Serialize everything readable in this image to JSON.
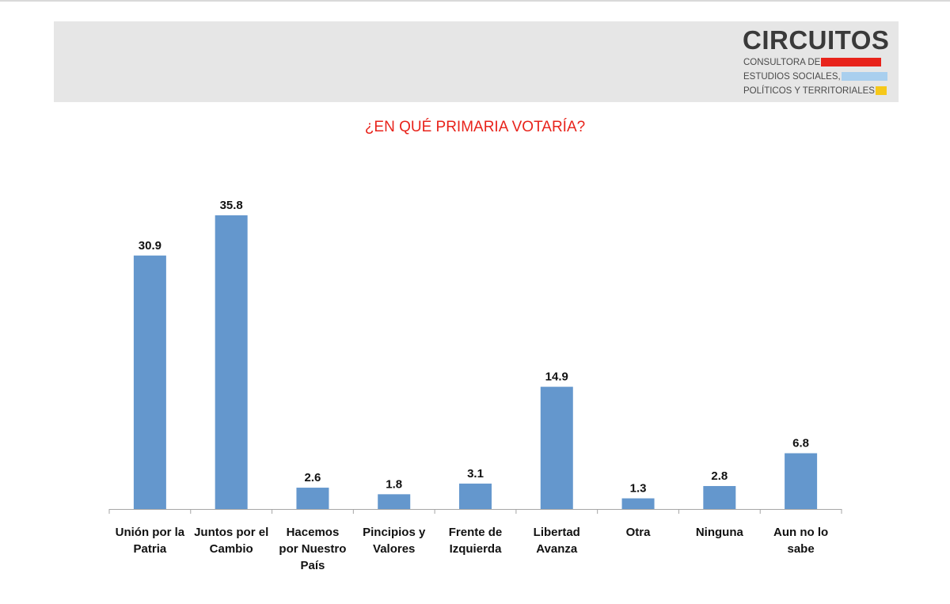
{
  "logo": {
    "name": "CIRCUITOS",
    "line1": "CONSULTORA DE",
    "line2": "ESTUDIOS SOCIALES,",
    "line3": "POLÍTICOS Y TERRITORIALES",
    "stripe_colors": [
      "#e8231b",
      "#a9cfee",
      "#f6c81a"
    ]
  },
  "colors": {
    "bar": "#6497cd",
    "title": "#e8231b",
    "axis": "#a6a6a6"
  },
  "chart_data": {
    "type": "bar",
    "title": "¿EN QUÉ PRIMARIA VOTARÍA?",
    "categories": [
      [
        "Unión por la",
        "Patria"
      ],
      [
        "Juntos por el",
        "Cambio"
      ],
      [
        "Hacemos",
        "por Nuestro",
        "País"
      ],
      [
        "Pincipios y",
        "Valores"
      ],
      [
        "Frente de",
        "Izquierda"
      ],
      [
        "Libertad",
        "Avanza"
      ],
      [
        "Otra"
      ],
      [
        "Ninguna"
      ],
      [
        "Aun no lo",
        "sabe"
      ]
    ],
    "values": [
      30.9,
      35.8,
      2.6,
      1.8,
      3.1,
      14.9,
      1.3,
      2.8,
      6.8
    ],
    "value_labels": [
      "30.9",
      "35.8",
      "2.6",
      "1.8",
      "3.1",
      "14.9",
      "1.3",
      "2.8",
      "6.8"
    ],
    "xlabel": "",
    "ylabel": "",
    "ylim": [
      0,
      35.8
    ],
    "grid": false,
    "legend": "none"
  }
}
